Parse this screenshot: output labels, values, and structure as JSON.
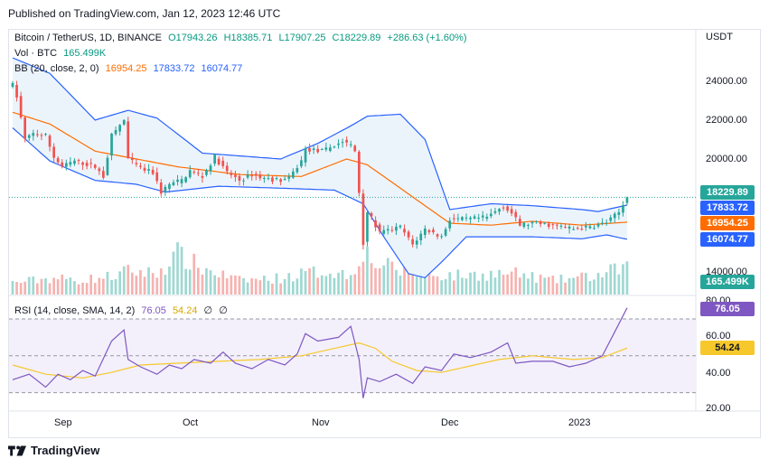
{
  "header": {
    "published": "Published on TradingView.com, Jan 12, 2023 12:46 UTC"
  },
  "legend": {
    "symbol": "Bitcoin / TetherUS, 1D, BINANCE",
    "open": "O17943.26",
    "high": "H18385.71",
    "low": "L17907.25",
    "close": "C18229.89",
    "change": "+286.63 (+1.60%)",
    "vol_label": "Vol · BTC",
    "vol_value": "165.499K",
    "bb_label": "BB (20, close, 2, 0)",
    "bb_basis": "16954.25",
    "bb_upper": "17833.72",
    "bb_lower": "16074.77",
    "rsi_label": "RSI (14, close, SMA, 14, 2)",
    "rsi_value": "76.05",
    "rsi_ma": "54.24",
    "rsi_extra1": "∅",
    "rsi_extra2": "∅"
  },
  "price_axis": {
    "unit": "USDT",
    "ticks": [
      "24000.00",
      "22000.00",
      "20000.00",
      "14000.00"
    ],
    "tags": {
      "close": "18229.89",
      "upper": "17833.72",
      "basis": "16954.25",
      "lower": "16074.77",
      "volume": "165.499K"
    }
  },
  "rsi_axis": {
    "ticks": [
      "80.00",
      "60.00",
      "40.00",
      "20.00"
    ],
    "tag_rsi": "76.05",
    "tag_ma": "54.24"
  },
  "time_axis": {
    "labels": [
      "Sep",
      "Oct",
      "Nov",
      "Dec",
      "2023"
    ]
  },
  "footer": {
    "brand": "TradingView"
  },
  "colors": {
    "up": "#26a69a",
    "down": "#ef5350",
    "bb_upper": "#2962ff",
    "bb_lower": "#2962ff",
    "bb_basis": "#ff6d00",
    "bb_fill": "#eaf3fb",
    "rsi": "#7e57c2",
    "rsi_ma": "#f7c82b",
    "vol_up": "#9fd8d2",
    "vol_down": "#f5b3b1"
  },
  "chart_data": [
    {
      "type": "candlestick",
      "title": "Bitcoin / TetherUS, 1D, BINANCE",
      "x_range": [
        "2022-08-16",
        "2023-01-12"
      ],
      "ylim": [
        13500,
        25800
      ],
      "close_path": [
        [
          "2022-08-16",
          24000
        ],
        [
          "2022-08-17",
          23400
        ],
        [
          "2022-08-19",
          21200
        ],
        [
          "2022-08-21",
          21500
        ],
        [
          "2022-08-24",
          21400
        ],
        [
          "2022-08-26",
          20300
        ],
        [
          "2022-08-28",
          19800
        ],
        [
          "2022-08-31",
          20100
        ],
        [
          "2022-09-05",
          19800
        ],
        [
          "2022-09-07",
          19300
        ],
        [
          "2022-09-09",
          21400
        ],
        [
          "2022-09-12",
          22200
        ],
        [
          "2022-09-13",
          20200
        ],
        [
          "2022-09-16",
          19700
        ],
        [
          "2022-09-19",
          19500
        ],
        [
          "2022-09-21",
          18500
        ],
        [
          "2022-09-23",
          18900
        ],
        [
          "2022-09-26",
          19100
        ],
        [
          "2022-09-28",
          19600
        ],
        [
          "2022-10-01",
          19300
        ],
        [
          "2022-10-04",
          20300
        ],
        [
          "2022-10-07",
          19500
        ],
        [
          "2022-10-10",
          19100
        ],
        [
          "2022-10-13",
          19400
        ],
        [
          "2022-10-16",
          19200
        ],
        [
          "2022-10-20",
          19100
        ],
        [
          "2022-10-22",
          19200
        ],
        [
          "2022-10-25",
          20100
        ],
        [
          "2022-10-26",
          20700
        ],
        [
          "2022-10-30",
          20600
        ],
        [
          "2022-11-04",
          21100
        ],
        [
          "2022-11-06",
          20900
        ],
        [
          "2022-11-07",
          20600
        ],
        [
          "2022-11-08",
          18500
        ],
        [
          "2022-11-09",
          15900
        ],
        [
          "2022-11-10",
          17500
        ],
        [
          "2022-11-13",
          16400
        ],
        [
          "2022-11-18",
          16700
        ],
        [
          "2022-11-21",
          15800
        ],
        [
          "2022-11-24",
          16600
        ],
        [
          "2022-11-28",
          16200
        ],
        [
          "2022-11-30",
          17100
        ],
        [
          "2022-12-04",
          17100
        ],
        [
          "2022-12-09",
          17200
        ],
        [
          "2022-12-13",
          17800
        ],
        [
          "2022-12-15",
          17400
        ],
        [
          "2022-12-17",
          16800
        ],
        [
          "2022-12-20",
          16900
        ],
        [
          "2022-12-25",
          16800
        ],
        [
          "2022-12-30",
          16600
        ],
        [
          "2023-01-03",
          16700
        ],
        [
          "2023-01-07",
          16950
        ],
        [
          "2023-01-10",
          17450
        ],
        [
          "2023-01-12",
          18229.89
        ]
      ],
      "bollinger": {
        "upper": [
          [
            "2022-08-16",
            25400
          ],
          [
            "2022-08-25",
            24600
          ],
          [
            "2022-09-05",
            22200
          ],
          [
            "2022-09-13",
            22700
          ],
          [
            "2022-09-20",
            22300
          ],
          [
            "2022-10-01",
            20500
          ],
          [
            "2022-10-20",
            20200
          ],
          [
            "2022-10-29",
            21000
          ],
          [
            "2022-11-06",
            21900
          ],
          [
            "2022-11-10",
            22400
          ],
          [
            "2022-11-18",
            22500
          ],
          [
            "2022-11-24",
            21200
          ],
          [
            "2022-11-30",
            17600
          ],
          [
            "2022-12-10",
            17900
          ],
          [
            "2022-12-20",
            17800
          ],
          [
            "2023-01-01",
            17600
          ],
          [
            "2023-01-05",
            17500
          ],
          [
            "2023-01-12",
            17833.72
          ]
        ],
        "basis": [
          [
            "2022-08-16",
            22600
          ],
          [
            "2022-08-25",
            22000
          ],
          [
            "2022-09-05",
            20600
          ],
          [
            "2022-09-15",
            20200
          ],
          [
            "2022-09-25",
            19800
          ],
          [
            "2022-10-10",
            19400
          ],
          [
            "2022-10-25",
            19300
          ],
          [
            "2022-11-05",
            20200
          ],
          [
            "2022-11-10",
            19900
          ],
          [
            "2022-11-20",
            18400
          ],
          [
            "2022-11-30",
            16900
          ],
          [
            "2022-12-10",
            16800
          ],
          [
            "2022-12-20",
            17000
          ],
          [
            "2023-01-01",
            16800
          ],
          [
            "2023-01-12",
            16954.25
          ]
        ],
        "lower": [
          [
            "2022-08-16",
            21800
          ],
          [
            "2022-08-25",
            20100
          ],
          [
            "2022-09-05",
            19100
          ],
          [
            "2022-09-15",
            18900
          ],
          [
            "2022-09-22",
            18500
          ],
          [
            "2022-10-05",
            18800
          ],
          [
            "2022-10-20",
            18700
          ],
          [
            "2022-11-02",
            18600
          ],
          [
            "2022-11-09",
            17900
          ],
          [
            "2022-11-14",
            16200
          ],
          [
            "2022-11-20",
            14300
          ],
          [
            "2022-11-24",
            14100
          ],
          [
            "2022-11-28",
            14900
          ],
          [
            "2022-12-04",
            16200
          ],
          [
            "2022-12-20",
            16200
          ],
          [
            "2023-01-01",
            16100
          ],
          [
            "2023-01-07",
            16300
          ],
          [
            "2023-01-12",
            16074.77
          ]
        ]
      },
      "last_close": 18229.89
    },
    {
      "type": "bar",
      "title": "Vol · BTC",
      "x_range": [
        "2022-08-16",
        "2023-01-12"
      ],
      "volume_path": [
        [
          "2022-08-16",
          0.25
        ],
        [
          "2022-08-26",
          0.35
        ],
        [
          "2022-09-01",
          0.3
        ],
        [
          "2022-09-10",
          0.4
        ],
        [
          "2022-09-13",
          0.5
        ],
        [
          "2022-09-20",
          0.45
        ],
        [
          "2022-09-25",
          0.85
        ],
        [
          "2022-10-01",
          0.55
        ],
        [
          "2022-10-10",
          0.3
        ],
        [
          "2022-10-20",
          0.35
        ],
        [
          "2022-10-26",
          0.45
        ],
        [
          "2022-11-01",
          0.5
        ],
        [
          "2022-11-06",
          0.4
        ],
        [
          "2022-11-09",
          1.0
        ],
        [
          "2022-11-11",
          0.7
        ],
        [
          "2022-11-20",
          0.45
        ],
        [
          "2022-12-01",
          0.4
        ],
        [
          "2022-12-15",
          0.45
        ],
        [
          "2022-12-25",
          0.3
        ],
        [
          "2023-01-05",
          0.4
        ],
        [
          "2023-01-12",
          0.6
        ]
      ],
      "last_value": "165.499K"
    },
    {
      "type": "line",
      "title": "RSI (14, close, SMA, 14, 2)",
      "x_range": [
        "2022-08-16",
        "2023-01-12"
      ],
      "ylim": [
        20,
        80
      ],
      "bands": [
        30,
        50,
        70
      ],
      "series": [
        {
          "name": "RSI",
          "values": [
            [
              "2022-08-16",
              37
            ],
            [
              "2022-08-20",
              40
            ],
            [
              "2022-08-24",
              33
            ],
            [
              "2022-08-27",
              40
            ],
            [
              "2022-08-30",
              37
            ],
            [
              "2022-09-02",
              42
            ],
            [
              "2022-09-05",
              39
            ],
            [
              "2022-09-09",
              58
            ],
            [
              "2022-09-12",
              64
            ],
            [
              "2022-09-13",
              48
            ],
            [
              "2022-09-16",
              44
            ],
            [
              "2022-09-20",
              40
            ],
            [
              "2022-09-23",
              45
            ],
            [
              "2022-09-26",
              43
            ],
            [
              "2022-09-29",
              48
            ],
            [
              "2022-10-03",
              46
            ],
            [
              "2022-10-06",
              52
            ],
            [
              "2022-10-09",
              46
            ],
            [
              "2022-10-13",
              43
            ],
            [
              "2022-10-17",
              48
            ],
            [
              "2022-10-21",
              45
            ],
            [
              "2022-10-24",
              51
            ],
            [
              "2022-10-26",
              62
            ],
            [
              "2022-10-29",
              58
            ],
            [
              "2022-11-03",
              60
            ],
            [
              "2022-11-06",
              66
            ],
            [
              "2022-11-08",
              48
            ],
            [
              "2022-11-09",
              27
            ],
            [
              "2022-11-10",
              38
            ],
            [
              "2022-11-13",
              36
            ],
            [
              "2022-11-17",
              40
            ],
            [
              "2022-11-21",
              35
            ],
            [
              "2022-11-24",
              44
            ],
            [
              "2022-11-28",
              42
            ],
            [
              "2022-12-01",
              51
            ],
            [
              "2022-12-05",
              49
            ],
            [
              "2022-12-10",
              52
            ],
            [
              "2022-12-14",
              57
            ],
            [
              "2022-12-16",
              46
            ],
            [
              "2022-12-20",
              47
            ],
            [
              "2022-12-25",
              47
            ],
            [
              "2022-12-29",
              44
            ],
            [
              "2023-01-02",
              46
            ],
            [
              "2023-01-06",
              50
            ],
            [
              "2023-01-09",
              63
            ],
            [
              "2023-01-12",
              76.05
            ]
          ]
        },
        {
          "name": "RSI-based MA",
          "values": [
            [
              "2022-08-16",
              45
            ],
            [
              "2022-08-24",
              40
            ],
            [
              "2022-09-02",
              38
            ],
            [
              "2022-09-09",
              41
            ],
            [
              "2022-09-16",
              45
            ],
            [
              "2022-09-25",
              46
            ],
            [
              "2022-10-05",
              47
            ],
            [
              "2022-10-15",
              48
            ],
            [
              "2022-10-25",
              50
            ],
            [
              "2022-11-04",
              55
            ],
            [
              "2022-11-08",
              57
            ],
            [
              "2022-11-12",
              54
            ],
            [
              "2022-11-16",
              47
            ],
            [
              "2022-11-22",
              42
            ],
            [
              "2022-11-28",
              41
            ],
            [
              "2022-12-04",
              44
            ],
            [
              "2022-12-12",
              48
            ],
            [
              "2022-12-20",
              50
            ],
            [
              "2022-12-30",
              48
            ],
            [
              "2023-01-06",
              49
            ],
            [
              "2023-01-12",
              54.24
            ]
          ]
        }
      ]
    }
  ]
}
